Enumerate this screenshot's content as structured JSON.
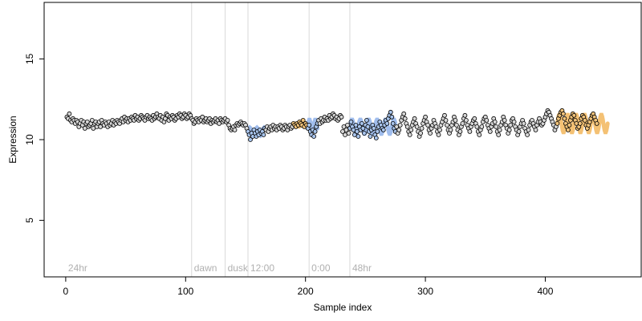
{
  "chart_data": {
    "type": "scatter",
    "xlabel": "Sample index",
    "ylabel": "Expression",
    "xlim": [
      -18,
      480
    ],
    "ylim": [
      1.5,
      18.5
    ],
    "xticks": [
      0,
      100,
      200,
      300,
      400
    ],
    "yticks": [
      5,
      10,
      15
    ],
    "grid": false,
    "colors": {
      "axis": "#000000",
      "divider": "#d9d9d9",
      "segment_label": "#b0b0b0",
      "point_fill_default": "#d7d7d7",
      "point_fill_orange": "#f0c27a",
      "point_fill_blue": "#a8c4ec",
      "band_orange": "#f2b65c",
      "band_blue": "#8fb2ea"
    },
    "segments": [
      {
        "label": "24hr",
        "start": 0
      },
      {
        "label": "dawn",
        "start": 105
      },
      {
        "label": "dusk",
        "start": 133
      },
      {
        "label": "12:00",
        "start": 152
      },
      {
        "label": "0:00",
        "start": 203
      },
      {
        "label": "48hr",
        "start": 237
      }
    ],
    "bands": [
      {
        "color": "blue",
        "from": 152,
        "to": 166,
        "level": 10.5,
        "amplitude": 0.25,
        "period": 6
      },
      {
        "color": "orange",
        "from": 190,
        "to": 202,
        "level": 10.9,
        "amplitude": 0.1,
        "period": 6
      },
      {
        "color": "blue",
        "from": 202,
        "to": 210,
        "level": 10.9,
        "amplitude": 0.35,
        "period": 5
      },
      {
        "color": "blue",
        "from": 237,
        "to": 275,
        "level": 10.8,
        "amplitude": 0.45,
        "period": 7
      },
      {
        "color": "orange",
        "from": 410,
        "to": 452,
        "level": 11.0,
        "amplitude": 0.55,
        "period": 7
      }
    ],
    "series": [
      {
        "x_start": 1,
        "y": [
          11.4,
          11.3,
          11.6,
          11.2,
          11.1,
          11.3,
          11.2,
          11.0,
          11.2,
          11.1,
          10.8,
          11.0,
          11.2,
          10.9,
          11.1,
          10.7,
          11.0,
          11.1,
          10.8,
          10.9,
          11.0,
          11.2,
          10.7,
          11.0,
          11.1,
          10.8,
          11.0,
          11.1,
          10.8,
          11.2,
          11.0,
          10.9,
          11.1,
          11.0,
          10.8,
          11.1,
          10.9,
          11.0,
          11.2,
          10.9,
          11.1,
          11.0,
          11.2,
          11.1,
          11.0,
          11.2,
          11.3,
          11.1,
          11.4,
          11.2,
          11.3,
          11.1,
          11.3,
          11.2,
          11.4,
          11.3,
          11.2,
          11.5,
          11.3,
          11.4,
          11.2,
          11.3,
          11.5,
          11.4,
          11.3,
          11.2,
          11.4,
          11.5,
          11.3,
          11.4,
          11.3,
          11.2,
          11.5,
          11.3,
          11.4,
          11.6,
          11.4,
          11.3,
          11.5,
          11.2,
          11.4,
          11.1,
          11.3,
          11.6,
          11.5,
          11.2,
          11.4,
          11.3,
          11.5,
          11.4,
          11.2,
          11.3,
          11.5,
          11.4,
          11.6,
          11.5,
          11.3,
          11.4,
          11.6,
          11.5,
          11.3,
          11.4,
          11.6,
          11.5,
          11.3,
          11.2,
          11.0,
          11.1,
          11.3,
          11.2,
          11.1,
          11.3,
          11.2,
          11.4,
          11.1,
          11.2,
          11.3,
          11.1,
          11.2,
          11.3,
          11.0,
          11.2,
          11.1,
          11.2,
          11.3,
          11.1,
          11.2,
          11.0,
          11.3,
          11.2,
          11.1,
          11.2,
          11.3,
          11.1,
          11.2,
          10.9,
          10.7,
          10.6,
          10.7,
          10.8,
          10.6,
          10.9,
          11.0,
          10.9,
          11.0,
          11.1,
          11.0,
          10.9,
          11.0,
          10.9,
          10.7,
          10.5,
          10.3,
          10.0,
          10.4,
          10.2,
          10.6,
          10.4,
          10.2,
          10.5,
          10.3,
          10.6,
          10.4,
          10.5,
          10.3,
          10.7,
          10.6,
          10.8,
          10.5,
          10.7,
          10.8,
          10.6,
          10.9,
          10.7,
          10.8,
          10.6,
          10.8,
          10.7,
          10.9,
          10.8,
          10.6,
          10.7,
          10.9,
          10.8,
          10.6,
          10.8,
          10.9,
          10.7,
          10.8,
          11.0,
          10.9,
          10.8,
          11.0,
          10.9,
          11.1,
          11.0,
          10.9,
          11.2,
          10.8,
          11.0,
          10.9,
          10.7,
          10.9,
          10.5,
          10.3,
          10.6,
          10.2,
          10.5,
          10.8,
          11.0,
          11.2,
          11.0,
          11.3,
          11.1,
          11.2,
          11.4,
          11.2,
          11.3,
          11.2,
          11.5,
          11.3,
          11.4,
          11.6,
          11.5,
          11.3,
          11.4,
          11.2,
          11.3,
          11.5,
          11.4,
          10.5,
          10.8,
          10.3,
          10.6,
          10.9,
          10.4,
          10.7,
          11.1,
          10.8,
          10.6,
          10.3,
          10.9,
          10.5,
          10.2,
          10.8,
          10.6,
          11.0,
          10.7,
          10.4,
          10.9,
          11.2,
          10.8,
          10.5,
          10.2,
          10.6,
          10.9,
          10.7,
          10.3,
          10.1,
          10.5,
          10.8,
          11.1,
          10.9,
          10.7,
          10.6,
          10.9,
          11.2,
          11.0,
          11.3,
          11.5,
          11.7,
          11.4,
          11.0,
          10.7,
          10.5,
          10.8,
          10.4,
          10.6,
          10.9,
          11.2,
          11.4,
          11.6,
          11.3,
          11.0,
          10.8,
          10.5,
          10.3,
          10.6,
          10.9,
          11.1,
          11.3,
          11.0,
          10.8,
          10.5,
          10.2,
          10.4,
          10.7,
          11.0,
          11.2,
          11.4,
          11.1,
          10.9,
          10.6,
          10.4,
          10.7,
          10.9,
          11.2,
          11.0,
          10.8,
          10.5,
          10.3,
          10.6,
          10.9,
          11.1,
          11.3,
          11.5,
          11.2,
          10.9,
          10.6,
          10.4,
          10.6,
          10.9,
          11.1,
          11.4,
          11.2,
          10.9,
          10.6,
          10.3,
          10.5,
          10.8,
          11.0,
          11.3,
          11.5,
          11.2,
          10.9,
          10.7,
          10.5,
          10.8,
          11.0,
          11.2,
          11.3,
          11.0,
          10.8,
          10.5,
          10.3,
          10.6,
          10.8,
          11.1,
          11.3,
          11.4,
          11.2,
          10.9,
          10.7,
          10.5,
          10.8,
          11.0,
          11.3,
          11.1,
          10.8,
          10.5,
          10.3,
          10.6,
          10.9,
          11.1,
          11.4,
          11.2,
          10.9,
          10.7,
          10.4,
          10.6,
          10.9,
          11.2,
          11.3,
          11.1,
          10.8,
          10.6,
          10.3,
          10.5,
          10.8,
          11.0,
          11.2,
          11.0,
          10.7,
          10.5,
          10.3,
          10.6,
          10.9,
          11.1,
          11.2,
          11.0,
          10.8,
          10.6,
          10.9,
          11.1,
          11.3,
          11.1,
          10.9,
          11.0,
          11.2,
          11.4,
          11.6,
          11.8,
          11.7,
          11.5,
          11.3,
          11.1,
          10.9,
          10.6,
          10.8,
          11.0,
          11.3,
          11.5,
          11.7,
          11.8,
          11.6,
          11.3,
          11.0,
          10.8,
          10.6,
          10.9,
          11.2,
          11.4,
          11.6,
          11.5,
          11.2,
          11.0,
          10.7,
          10.8,
          11.0,
          11.3,
          11.5,
          11.4,
          11.2,
          10.9,
          10.7,
          10.9,
          11.1,
          11.3,
          11.5,
          11.6,
          11.4,
          11.2,
          11.0
        ]
      }
    ]
  }
}
